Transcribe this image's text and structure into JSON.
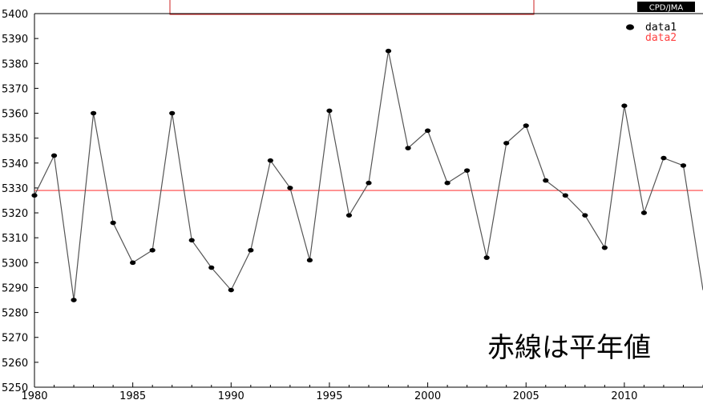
{
  "chart_data": {
    "type": "line",
    "title": "",
    "xlabel": "",
    "ylabel": "",
    "xlim": [
      1980,
      2014
    ],
    "ylim": [
      5250,
      5400
    ],
    "grid": false,
    "x_ticks": [
      1980,
      1985,
      1990,
      1995,
      2000,
      2005,
      2010
    ],
    "y_ticks": [
      5250,
      5260,
      5270,
      5280,
      5290,
      5300,
      5310,
      5320,
      5330,
      5340,
      5350,
      5360,
      5370,
      5380,
      5390,
      5400
    ],
    "series": [
      {
        "name": "data1",
        "color": "#000000",
        "line_color": "#555555",
        "x": [
          1980,
          1981,
          1982,
          1983,
          1984,
          1985,
          1986,
          1987,
          1988,
          1989,
          1990,
          1991,
          1992,
          1993,
          1994,
          1995,
          1996,
          1997,
          1998,
          1999,
          2000,
          2001,
          2002,
          2003,
          2004,
          2005,
          2006,
          2007,
          2008,
          2009,
          2010,
          2011,
          2012,
          2013,
          2014
        ],
        "y": [
          5327,
          5343,
          5285,
          5360,
          5316,
          5300,
          5305,
          5360,
          5309,
          5298,
          5289,
          5305,
          5341,
          5330,
          5301,
          5361,
          5319,
          5332,
          5385,
          5346,
          5353,
          5332,
          5337,
          5302,
          5348,
          5355,
          5333,
          5327,
          5319,
          5306,
          5363,
          5320,
          5342,
          5339,
          5289
        ]
      },
      {
        "name": "data2",
        "color": "#ff4040",
        "line_color": "#ff4040",
        "y": 5329
      }
    ],
    "legend_position": "top-right",
    "credit": "CPD/JMA",
    "note": "赤線は平年値"
  }
}
